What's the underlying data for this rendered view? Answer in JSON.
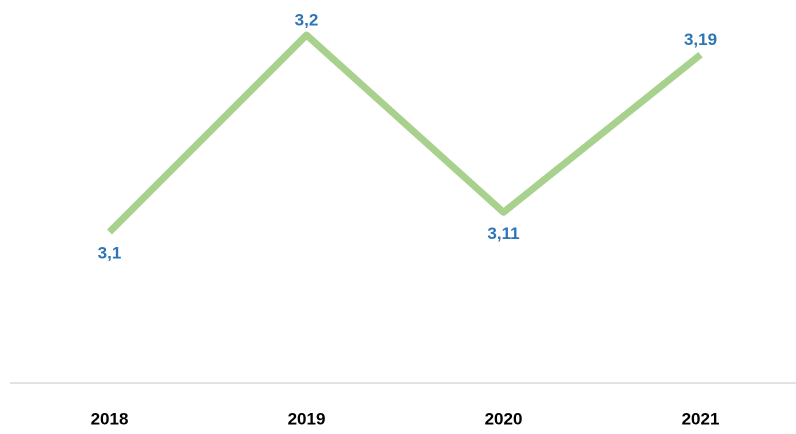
{
  "chart_data": {
    "type": "line",
    "categories": [
      "2018",
      "2019",
      "2020",
      "2021"
    ],
    "series": [
      {
        "values": [
          3.1,
          3.2,
          3.11,
          3.19
        ],
        "value_labels": [
          "3,1",
          "3,2",
          "3,11",
          "3,19"
        ],
        "color": "#a9d18e",
        "label_color": "#2e75b6"
      }
    ]
  }
}
